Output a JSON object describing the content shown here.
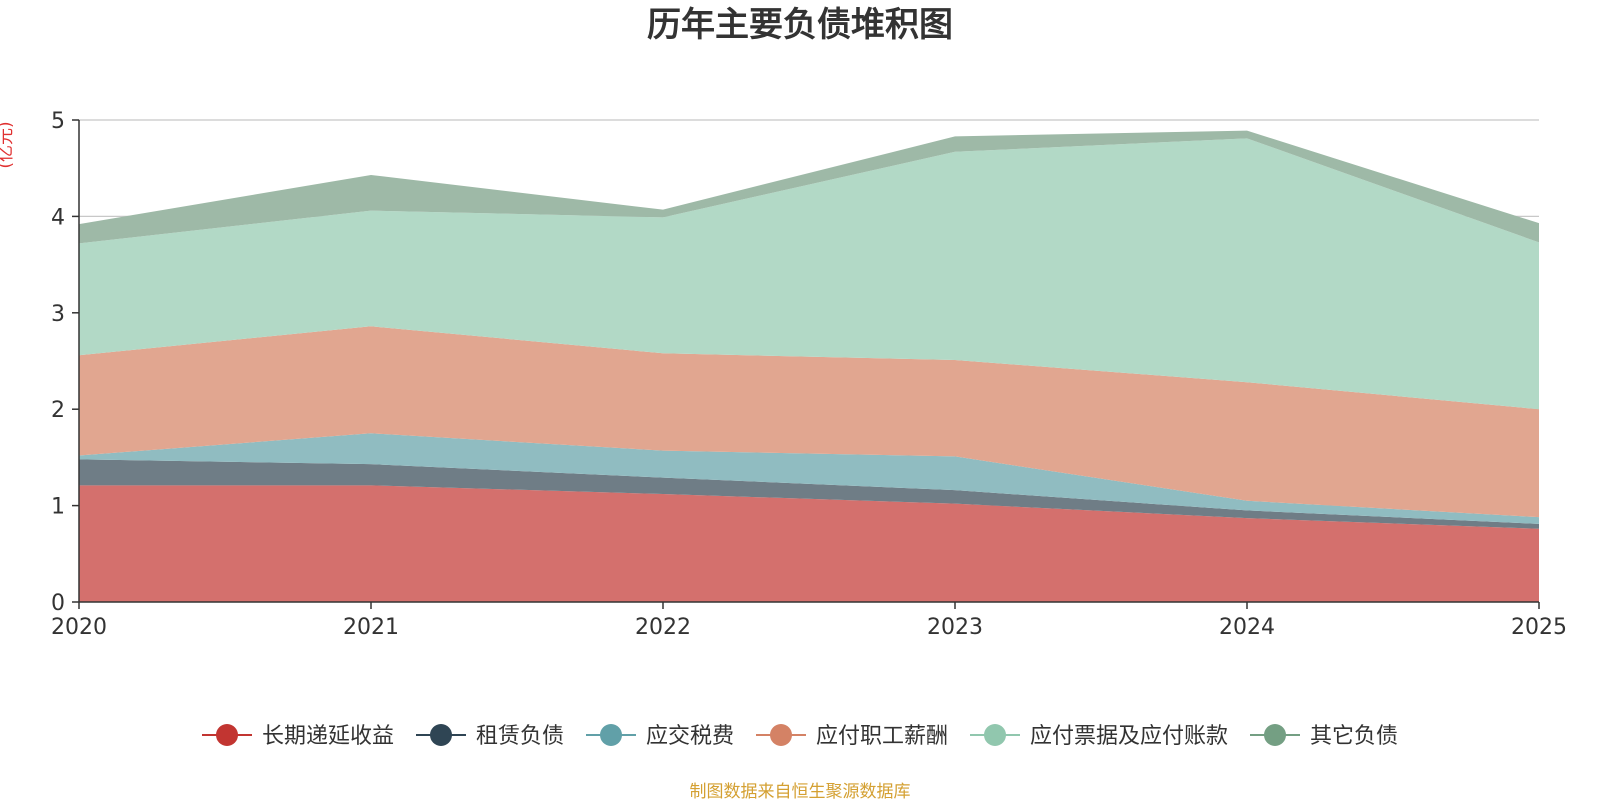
{
  "chart_data": {
    "type": "area",
    "stacked": true,
    "title": "历年主要负债堆积图",
    "ylabel": "(亿元)",
    "xlabel": "",
    "x": [
      "2020",
      "2021",
      "2022",
      "2023",
      "2024",
      "2025"
    ],
    "ylim": [
      0,
      5
    ],
    "yticks": [
      "0",
      "1",
      "2",
      "3",
      "4",
      "5"
    ],
    "series": [
      {
        "name": "长期递延收益",
        "color": "#c23531",
        "fill": "#d4706d",
        "values": [
          1.21,
          1.21,
          1.12,
          1.02,
          0.87,
          0.76
        ]
      },
      {
        "name": "租赁负债",
        "color": "#2f4554",
        "fill": "#6f7d86",
        "values": [
          0.27,
          0.22,
          0.17,
          0.14,
          0.08,
          0.05
        ]
      },
      {
        "name": "应交税费",
        "color": "#61a0a8",
        "fill": "#90bcc1",
        "values": [
          0.04,
          0.32,
          0.28,
          0.35,
          0.1,
          0.07
        ]
      },
      {
        "name": "应付职工薪酬",
        "color": "#d48265",
        "fill": "#e1a690",
        "values": [
          1.04,
          1.11,
          1.01,
          1.0,
          1.23,
          1.12
        ]
      },
      {
        "name": "应付票据及应付账款",
        "color": "#91c7ae",
        "fill": "#b2d9c6",
        "values": [
          1.16,
          1.2,
          1.41,
          2.16,
          2.53,
          1.73
        ]
      },
      {
        "name": "其它负债",
        "color": "#749f83",
        "fill": "#9eb9a7",
        "values": [
          0.2,
          0.37,
          0.08,
          0.16,
          0.08,
          0.2
        ]
      }
    ],
    "legend_position": "bottom",
    "grid": true,
    "source_note": "制图数据来自恒生聚源数据库"
  }
}
